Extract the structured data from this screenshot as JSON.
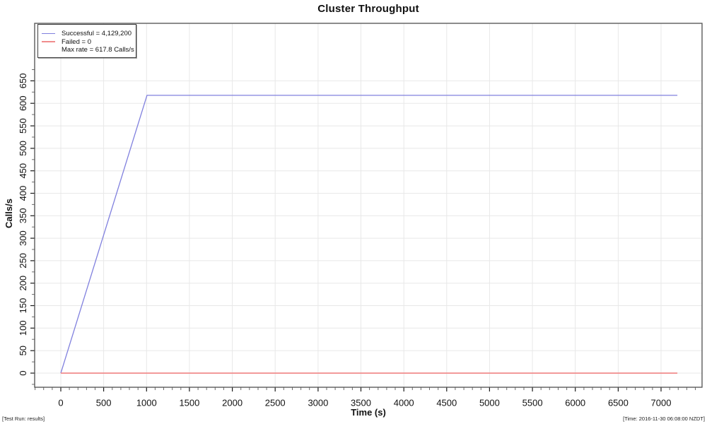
{
  "chart_data": {
    "type": "line",
    "title": "Cluster Throughput",
    "xlabel": "Time (s)",
    "ylabel": "Calls/s",
    "xlim": [
      -305,
      7478
    ],
    "ylim": [
      -31.5,
      778
    ],
    "x_ticks_major": [
      0,
      500,
      1000,
      1500,
      2000,
      2500,
      3000,
      3500,
      4000,
      4500,
      5000,
      5500,
      6000,
      6500,
      7000
    ],
    "y_ticks_major": [
      0,
      50,
      100,
      150,
      200,
      250,
      300,
      350,
      400,
      450,
      500,
      550,
      600,
      650
    ],
    "x_minor": {
      "from": -300,
      "to": 7400,
      "step": 100
    },
    "y_minor": {
      "from": -25,
      "to": 675,
      "step": 25
    },
    "grid": true,
    "legend_position": "top-left",
    "series": [
      {
        "name": "Successful",
        "label": "Successful = 4,129,200",
        "color": "#8080de",
        "width": 1.3,
        "points": [
          [
            0,
            0
          ],
          [
            1005,
            617.8
          ],
          [
            7190,
            617.8
          ]
        ]
      },
      {
        "name": "Failed",
        "label": "Failed = 0",
        "color": "#f08c8c",
        "width": 1.8,
        "points": [
          [
            0,
            0
          ],
          [
            7190,
            0
          ]
        ]
      }
    ],
    "annotations": [
      "Max rate = 617.8 Calls/s"
    ],
    "max_rate_value": 617.8,
    "footer_left": "[Test Run: results]",
    "footer_right": "[Time: 2016-11-30 06:08:00 NZDT]",
    "colors": {
      "grid": "#e8e8e8",
      "box": "#4f4f4f",
      "tick_major": "#1a1a1a",
      "tick_minor": "#6e6e6e",
      "text": "#111111"
    }
  }
}
